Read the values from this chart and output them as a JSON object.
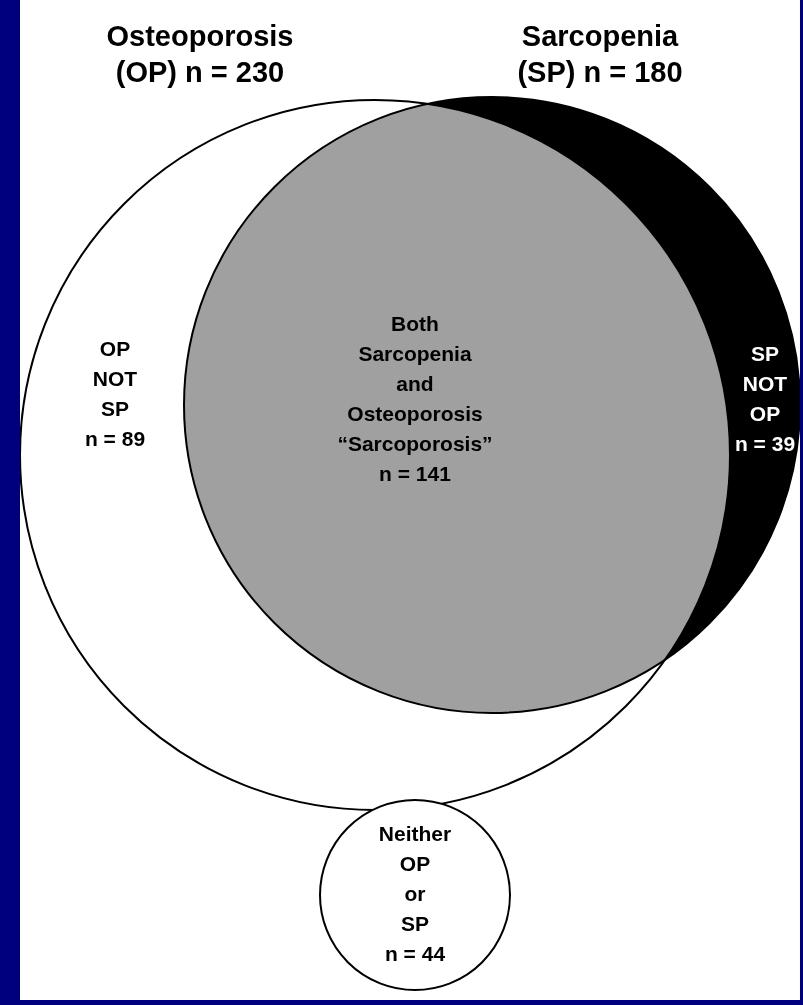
{
  "chart_data": {
    "type": "other",
    "categories": [
      "OP\nNOT\nSP",
      "Both\nSarcopenia\nand\nOsteoporosis\n“Sarcoporosis”",
      "SP\nNOT\nOP",
      "Neither\nOP\nor\nSP"
    ],
    "values": [
      89,
      141,
      39,
      44
    ],
    "value_labels": [
      "n = 89",
      "n = 141",
      "n = 39",
      "n = 44"
    ],
    "colors": [
      "#ffffff",
      "#a0a0a0",
      "#000000",
      "#ffffff"
    ],
    "annotations": [
      "Osteoporosis\n(OP) n = 230",
      "Sarcopenia\n(SP) n = 180"
    ]
  }
}
